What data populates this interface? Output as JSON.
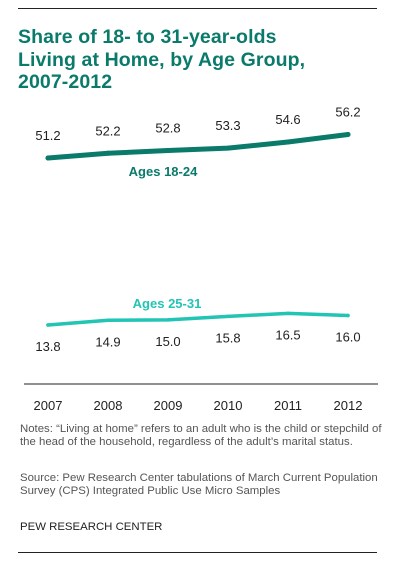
{
  "title": "Share of 18- to 31-year-olds\nLiving at Home, by Age Group,\n2007-2012",
  "notes": "Notes: “Living at home” refers to an adult who is the child or stepchild of the head of the household, regardless of the adult’s marital status.",
  "source": "Source: Pew Research Center tabulations of March Current Population Survey (CPS) Integrated Public Use Micro Samples",
  "org": "PEW RESEARCH CENTER",
  "chart_data": {
    "type": "line",
    "title": "Share of 18- to 31-year-olds Living at Home, by Age Group, 2007-2012",
    "xlabel": "",
    "ylabel": "",
    "grid": false,
    "categories": [
      "2007",
      "2008",
      "2009",
      "2010",
      "2011",
      "2012"
    ],
    "series": [
      {
        "name": "Ages 18-24",
        "color": "#0a7a6a",
        "values": [
          51.2,
          52.2,
          52.8,
          53.3,
          54.6,
          56.2
        ],
        "labels": [
          "51.2",
          "52.2",
          "52.8",
          "53.3",
          "54.6",
          "56.2"
        ]
      },
      {
        "name": "Ages 25-31",
        "color": "#22c4b4",
        "values": [
          13.8,
          14.9,
          15.0,
          15.8,
          16.5,
          16.0
        ],
        "labels": [
          "13.8",
          "14.9",
          "15.0",
          "15.8",
          "16.5",
          "16.0"
        ]
      }
    ]
  }
}
